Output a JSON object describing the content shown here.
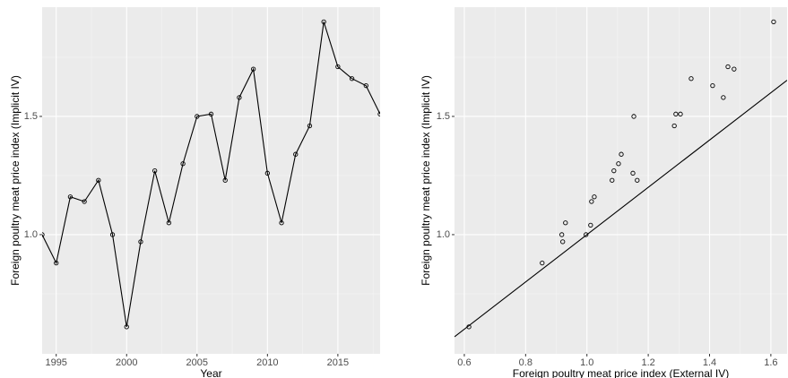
{
  "chart_data": [
    {
      "type": "line",
      "x_label": "Year",
      "y_label": "Foreign poultry meat price index (Implicit IV)",
      "x": [
        1994,
        1995,
        1996,
        1997,
        1998,
        1999,
        2000,
        2001,
        2002,
        2003,
        2004,
        2005,
        2006,
        2007,
        2008,
        2009,
        2010,
        2011,
        2012,
        2013,
        2014,
        2015,
        2016,
        2017,
        2018
      ],
      "values": [
        1.0,
        0.88,
        1.16,
        1.14,
        1.23,
        1.0,
        0.61,
        0.97,
        1.27,
        1.05,
        1.3,
        1.5,
        1.51,
        1.23,
        1.58,
        1.7,
        1.26,
        1.05,
        1.34,
        1.46,
        1.9,
        1.71,
        1.66,
        1.63,
        1.51
      ],
      "color": "#000000",
      "xlim": [
        1994,
        2018
      ],
      "xticks": [
        1995,
        2000,
        2005,
        2010,
        2015
      ],
      "ylim": [
        0.496,
        1.962
      ],
      "yticks": [
        {
          "value": 1.0,
          "label": "1.0"
        },
        1.5
      ],
      "grid": true
    },
    {
      "type": "scatter",
      "x_label": "Foreign poultry meat price index (External IV)",
      "y_label": "Foreign poultry meat price index (Implicit IV)",
      "x": [
        0.615,
        0.854,
        0.918,
        0.921,
        0.93,
        0.997,
        1.012,
        1.015,
        1.024,
        1.082,
        1.088,
        1.103,
        1.112,
        1.15,
        1.164,
        1.153,
        1.285,
        1.29,
        1.305,
        1.34,
        1.41,
        1.445,
        1.46,
        1.48,
        1.609
      ],
      "values": [
        0.61,
        0.88,
        1.0,
        0.97,
        1.05,
        1.0,
        1.04,
        1.14,
        1.16,
        1.23,
        1.27,
        1.3,
        1.34,
        1.26,
        1.23,
        1.5,
        1.46,
        1.51,
        1.51,
        1.66,
        1.63,
        1.58,
        1.71,
        1.7,
        1.9
      ],
      "color": "#000000",
      "abline": {
        "slope": 1,
        "intercept": 0
      },
      "xlim": [
        0.568,
        1.653
      ],
      "xticks": [
        0.6,
        0.8,
        {
          "value": 1.0,
          "label": "1.0"
        },
        1.2,
        1.4,
        1.6
      ],
      "ylim": [
        0.496,
        1.962
      ],
      "yticks": [
        {
          "value": 1.0,
          "label": "1.0"
        },
        1.5
      ],
      "grid": true
    }
  ]
}
